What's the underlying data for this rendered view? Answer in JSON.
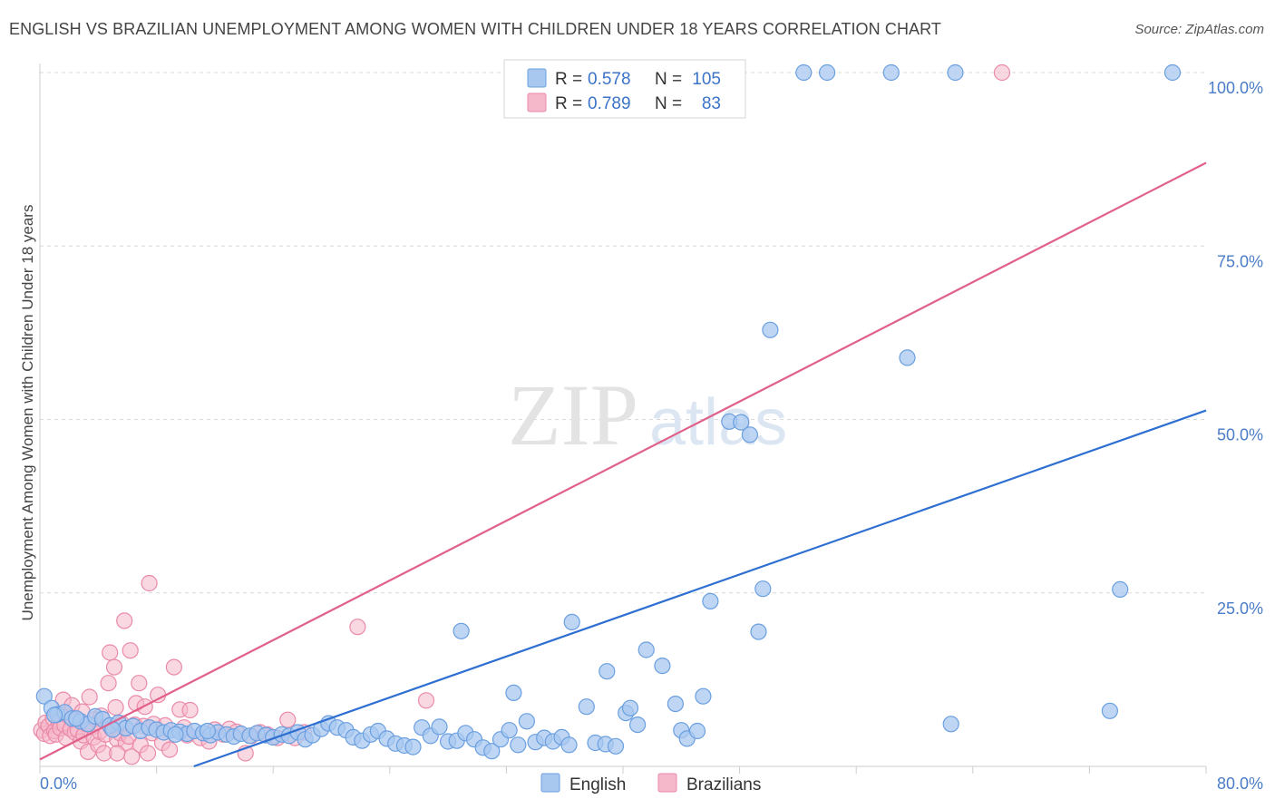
{
  "title": "ENGLISH VS BRAZILIAN UNEMPLOYMENT AMONG WOMEN WITH CHILDREN UNDER 18 YEARS CORRELATION CHART",
  "source": "Source: ZipAtlas.com",
  "watermark": {
    "zip": "ZIP",
    "atlas": "atlas"
  },
  "legend": {
    "rows": [
      {
        "r_label": "R =",
        "r_value": "0.578",
        "n_label": "N =",
        "n_value": "105"
      },
      {
        "r_label": "R =",
        "r_value": "0.789",
        "n_label": "N =",
        "n_value": "83"
      }
    ]
  },
  "colors": {
    "english_fill": "#a8c8f0",
    "english_stroke": "#6a9fe0",
    "english_line": "#2e6fd1",
    "brazil_fill": "#f5b8cb",
    "brazil_stroke": "#ea8aa8",
    "brazil_line": "#e0608a",
    "grid": "#d9d9d9",
    "axis_label": "#4a7cc7"
  },
  "chart_data": {
    "type": "scatter",
    "title": "ENGLISH VS BRAZILIAN UNEMPLOYMENT AMONG WOMEN WITH CHILDREN UNDER 18 YEARS CORRELATION CHART",
    "xlabel": "",
    "ylabel": "Unemployment Among Women with Children Under 18 years",
    "xlim": [
      0,
      80
    ],
    "ylim": [
      0,
      100
    ],
    "x_tick_labels": [
      "0.0%",
      "80.0%"
    ],
    "y_ticks": [
      25,
      50,
      75,
      100
    ],
    "y_tick_labels": [
      "25.0%",
      "50.0%",
      "75.0%",
      "100.0%"
    ],
    "grid": true,
    "legend_position": "top-center",
    "series": [
      {
        "name": "English",
        "R": 0.578,
        "N": 105,
        "trendline": [
          [
            0,
            -7.8
          ],
          [
            80,
            51.3
          ]
        ],
        "points": [
          [
            0.3,
            10.1
          ],
          [
            0.8,
            8.4
          ],
          [
            1.2,
            7.5
          ],
          [
            1.7,
            7.8
          ],
          [
            2.2,
            6.9
          ],
          [
            2.8,
            6.5
          ],
          [
            3.3,
            6.1
          ],
          [
            3.8,
            7.2
          ],
          [
            4.3,
            6.8
          ],
          [
            4.8,
            5.9
          ],
          [
            5.4,
            6.3
          ],
          [
            5.9,
            5.5
          ],
          [
            6.4,
            5.8
          ],
          [
            6.9,
            5.1
          ],
          [
            7.5,
            5.6
          ],
          [
            8.0,
            5.3
          ],
          [
            8.5,
            4.9
          ],
          [
            9.0,
            5.2
          ],
          [
            9.6,
            5.0
          ],
          [
            10.1,
            4.7
          ],
          [
            10.6,
            5.1
          ],
          [
            11.2,
            4.8
          ],
          [
            11.7,
            4.5
          ],
          [
            12.2,
            4.9
          ],
          [
            12.8,
            4.6
          ],
          [
            13.3,
            4.3
          ],
          [
            13.8,
            4.7
          ],
          [
            14.4,
            4.4
          ],
          [
            14.9,
            4.8
          ],
          [
            15.5,
            4.5
          ],
          [
            16.0,
            4.2
          ],
          [
            16.6,
            4.6
          ],
          [
            17.1,
            4.4
          ],
          [
            17.7,
            4.9
          ],
          [
            18.2,
            3.9
          ],
          [
            18.7,
            4.5
          ],
          [
            19.3,
            5.4
          ],
          [
            19.8,
            6.2
          ],
          [
            20.4,
            5.6
          ],
          [
            21.0,
            5.2
          ],
          [
            21.5,
            4.2
          ],
          [
            22.1,
            3.7
          ],
          [
            22.7,
            4.6
          ],
          [
            23.2,
            5.1
          ],
          [
            23.8,
            4.0
          ],
          [
            24.4,
            3.3
          ],
          [
            25.0,
            3.0
          ],
          [
            25.6,
            2.8
          ],
          [
            26.2,
            5.6
          ],
          [
            26.8,
            4.4
          ],
          [
            27.4,
            5.7
          ],
          [
            28.0,
            3.6
          ],
          [
            28.6,
            3.7
          ],
          [
            29.2,
            4.8
          ],
          [
            29.8,
            3.9
          ],
          [
            30.4,
            2.7
          ],
          [
            31.0,
            2.2
          ],
          [
            31.6,
            3.9
          ],
          [
            32.2,
            5.2
          ],
          [
            32.8,
            3.1
          ],
          [
            33.4,
            6.5
          ],
          [
            34.0,
            3.5
          ],
          [
            34.6,
            4.1
          ],
          [
            35.2,
            3.6
          ],
          [
            35.8,
            4.2
          ],
          [
            36.3,
            3.1
          ],
          [
            37.5,
            8.6
          ],
          [
            38.1,
            3.4
          ],
          [
            38.8,
            3.2
          ],
          [
            39.5,
            2.9
          ],
          [
            28.9,
            19.5
          ],
          [
            32.5,
            10.6
          ],
          [
            36.5,
            20.8
          ],
          [
            38.9,
            13.7
          ],
          [
            40.2,
            7.7
          ],
          [
            40.5,
            8.4
          ],
          [
            41.0,
            6.0
          ],
          [
            41.6,
            16.8
          ],
          [
            42.7,
            14.5
          ],
          [
            43.6,
            9.0
          ],
          [
            44.0,
            5.2
          ],
          [
            44.4,
            4.0
          ],
          [
            45.1,
            5.1
          ],
          [
            45.5,
            10.1
          ],
          [
            46.0,
            23.8
          ],
          [
            47.3,
            49.7
          ],
          [
            48.1,
            49.6
          ],
          [
            48.7,
            47.8
          ],
          [
            49.3,
            19.4
          ],
          [
            49.6,
            25.6
          ],
          [
            50.1,
            62.9
          ],
          [
            52.4,
            100
          ],
          [
            54.0,
            100
          ],
          [
            58.4,
            100
          ],
          [
            59.5,
            58.9
          ],
          [
            62.5,
            6.1
          ],
          [
            62.8,
            100
          ],
          [
            73.4,
            8.0
          ],
          [
            74.1,
            25.5
          ],
          [
            77.7,
            100
          ],
          [
            1.0,
            7.4
          ],
          [
            2.5,
            6.9
          ],
          [
            5.0,
            5.3
          ],
          [
            9.3,
            4.6
          ],
          [
            11.5,
            5.1
          ]
        ]
      },
      {
        "name": "Brazilians",
        "R": 0.789,
        "N": 83,
        "trendline": [
          [
            0,
            1.0
          ],
          [
            80,
            87.0
          ]
        ],
        "points": [
          [
            0.1,
            5.2
          ],
          [
            0.3,
            4.7
          ],
          [
            0.4,
            6.3
          ],
          [
            0.6,
            5.8
          ],
          [
            0.7,
            4.4
          ],
          [
            0.9,
            6.9
          ],
          [
            1.0,
            5.1
          ],
          [
            1.1,
            4.6
          ],
          [
            1.3,
            6.4
          ],
          [
            1.4,
            5.5
          ],
          [
            1.6,
            9.6
          ],
          [
            1.7,
            5.9
          ],
          [
            1.8,
            4.1
          ],
          [
            2.0,
            7.2
          ],
          [
            2.1,
            5.4
          ],
          [
            2.2,
            8.8
          ],
          [
            2.4,
            4.9
          ],
          [
            2.5,
            6.7
          ],
          [
            2.6,
            5.2
          ],
          [
            2.8,
            3.6
          ],
          [
            2.9,
            7.9
          ],
          [
            3.0,
            4.5
          ],
          [
            3.2,
            6.1
          ],
          [
            3.3,
            2.1
          ],
          [
            3.4,
            10.0
          ],
          [
            3.6,
            5.7
          ],
          [
            3.7,
            4.2
          ],
          [
            3.8,
            6.8
          ],
          [
            4.0,
            3.1
          ],
          [
            4.1,
            5.0
          ],
          [
            4.2,
            7.3
          ],
          [
            4.4,
            1.9
          ],
          [
            4.5,
            4.6
          ],
          [
            4.7,
            12.0
          ],
          [
            4.8,
            16.4
          ],
          [
            4.9,
            5.5
          ],
          [
            5.1,
            14.3
          ],
          [
            5.2,
            8.5
          ],
          [
            5.3,
            3.9
          ],
          [
            5.5,
            4.8
          ],
          [
            5.6,
            6.2
          ],
          [
            5.8,
            21.0
          ],
          [
            5.9,
            3.4
          ],
          [
            6.1,
            4.3
          ],
          [
            6.2,
            16.7
          ],
          [
            6.3,
            1.4
          ],
          [
            6.5,
            6.0
          ],
          [
            6.6,
            9.1
          ],
          [
            6.8,
            12.0
          ],
          [
            6.9,
            3.1
          ],
          [
            7.1,
            5.8
          ],
          [
            7.2,
            8.6
          ],
          [
            7.4,
            1.9
          ],
          [
            7.5,
            26.4
          ],
          [
            7.7,
            4.8
          ],
          [
            7.8,
            6.1
          ],
          [
            8.1,
            10.3
          ],
          [
            8.4,
            3.4
          ],
          [
            8.6,
            5.9
          ],
          [
            8.9,
            2.4
          ],
          [
            9.2,
            14.3
          ],
          [
            9.6,
            8.2
          ],
          [
            9.9,
            5.6
          ],
          [
            10.1,
            4.5
          ],
          [
            10.3,
            8.1
          ],
          [
            11.0,
            4.1
          ],
          [
            11.6,
            3.6
          ],
          [
            12.0,
            5.3
          ],
          [
            12.6,
            4.6
          ],
          [
            13.0,
            5.4
          ],
          [
            13.5,
            5.0
          ],
          [
            14.1,
            1.9
          ],
          [
            14.5,
            4.4
          ],
          [
            15.1,
            4.9
          ],
          [
            15.6,
            4.6
          ],
          [
            16.3,
            4.1
          ],
          [
            17.0,
            6.7
          ],
          [
            17.5,
            4.1
          ],
          [
            18.1,
            4.9
          ],
          [
            21.8,
            20.1
          ],
          [
            26.5,
            9.5
          ],
          [
            66.0,
            100
          ],
          [
            5.3,
            1.9
          ]
        ]
      }
    ]
  },
  "bottom_legend": {
    "items": [
      {
        "label": "English"
      },
      {
        "label": "Brazilians"
      }
    ]
  }
}
